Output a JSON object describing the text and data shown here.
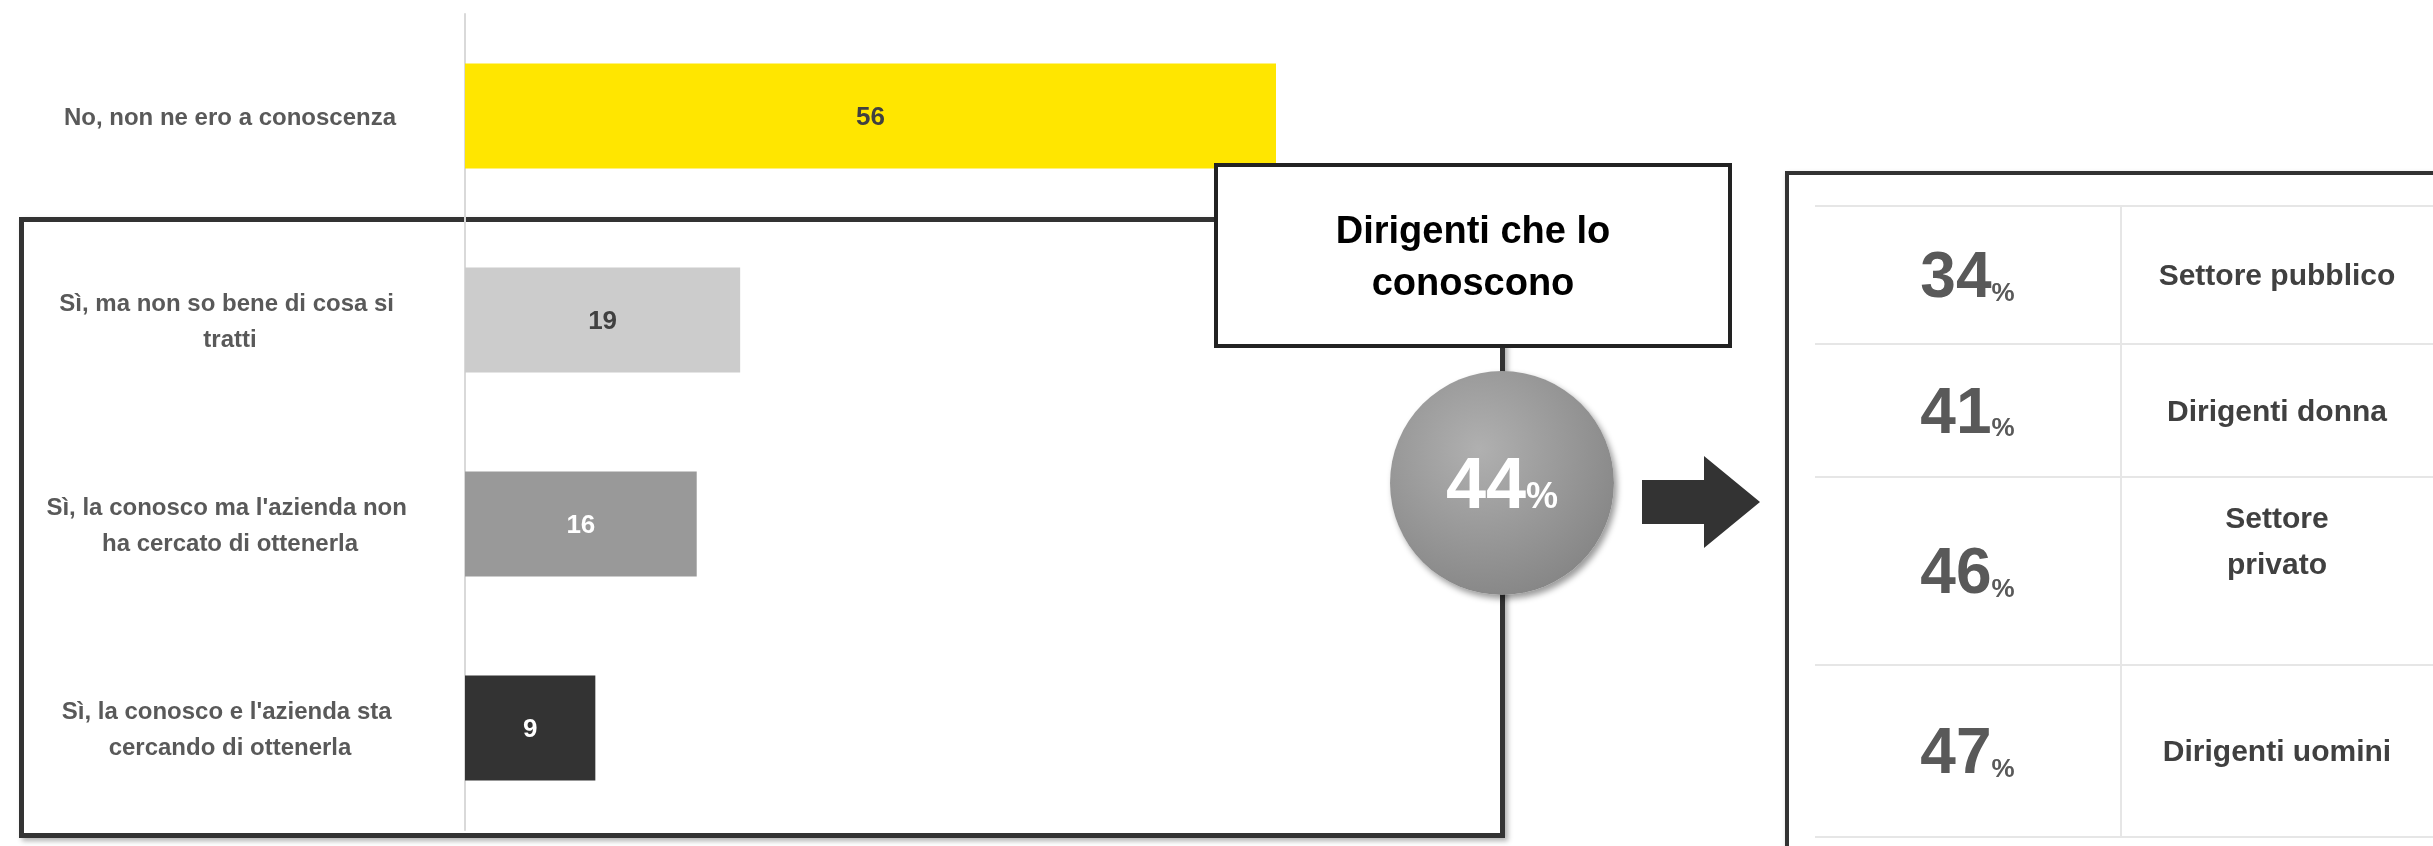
{
  "chart_data": [
    {
      "type": "bar",
      "orientation": "horizontal",
      "categories": [
        "No, non ne ero a conoscenza",
        "Sì, ma non so bene di cosa si tratti",
        "Sì, la conosco ma l'azienda non ha cercato di ottenerla",
        "Sì, la conosco e l'azienda sta cercando di ottenerla"
      ],
      "values": [
        56,
        19,
        16,
        9
      ],
      "colors": [
        "#ffe600",
        "#cccccc",
        "#999999",
        "#333333"
      ],
      "data_labels": true,
      "tick_labels": "y"
    },
    {
      "type": "other",
      "title": "Dirigenti che lo conoscono",
      "annotations": [
        "44%"
      ],
      "categories": [
        "Settore pubblico",
        "Dirigenti donna",
        "Settore privato",
        "Dirigenti uomini"
      ],
      "values": [
        34,
        41,
        46,
        47
      ],
      "value_labels": [
        "34%",
        "41%",
        "46%",
        "47%"
      ]
    }
  ]
}
